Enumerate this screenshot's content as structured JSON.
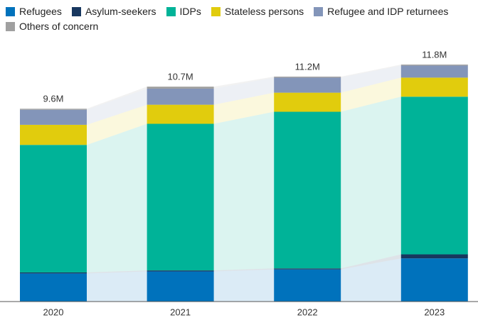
{
  "chart_data": {
    "type": "stacked-bar",
    "categories": [
      "2020",
      "2021",
      "2022",
      "2023"
    ],
    "series": [
      {
        "name": "Refugees",
        "color": "#0072bc",
        "values": [
          1.4,
          1.5,
          1.6,
          2.15
        ]
      },
      {
        "name": "Asylum-seekers",
        "color": "#18375f",
        "values": [
          0.05,
          0.05,
          0.05,
          0.2
        ]
      },
      {
        "name": "IDPs",
        "color": "#00b398",
        "values": [
          6.35,
          7.3,
          7.8,
          7.85
        ]
      },
      {
        "name": "Stateless persons",
        "color": "#e1cc0d",
        "values": [
          1.0,
          0.95,
          0.95,
          0.95
        ]
      },
      {
        "name": "Refugee and IDP returnees",
        "color": "#8395b9",
        "values": [
          0.75,
          0.8,
          0.75,
          0.6
        ]
      },
      {
        "name": "Others of concern",
        "color": "#a0a0a0",
        "values": [
          0.05,
          0.1,
          0.05,
          0.05
        ]
      }
    ],
    "totals": {
      "values": [
        9.6,
        10.7,
        11.2,
        11.8
      ],
      "value_labels": [
        "9.6M",
        "10.7M",
        "11.2M",
        "11.8M"
      ]
    }
  }
}
